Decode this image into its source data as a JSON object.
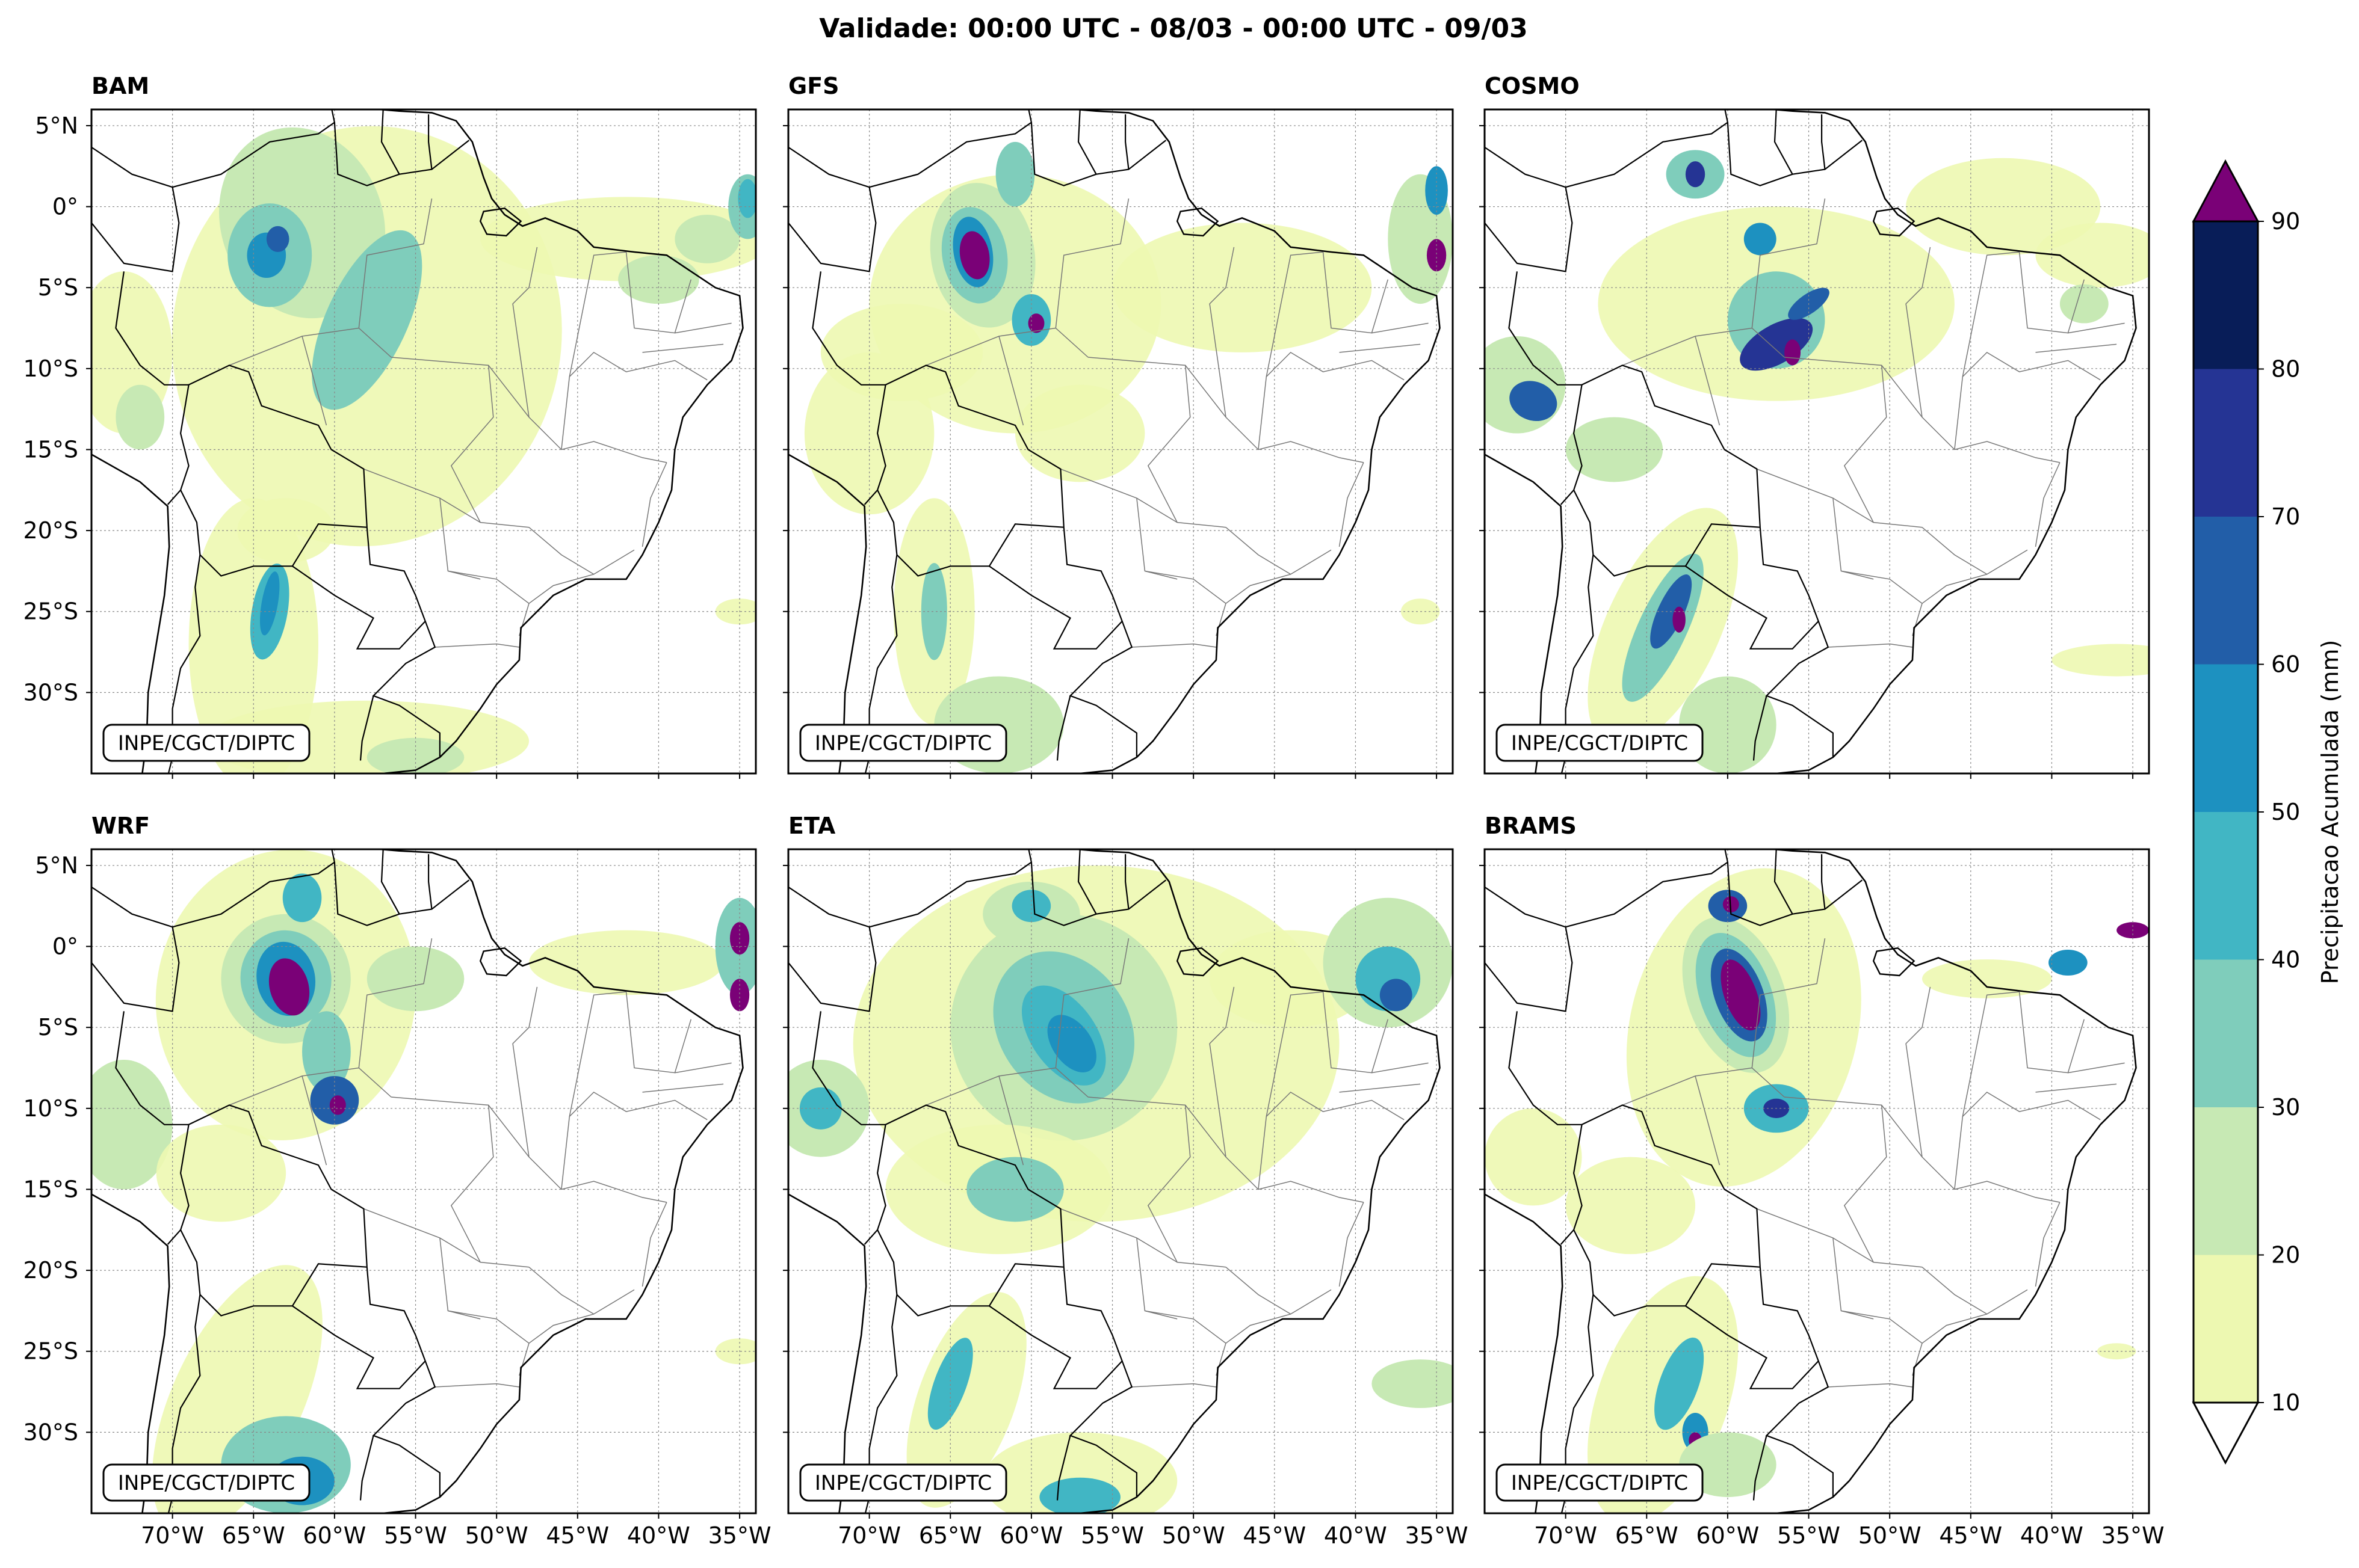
{
  "figure": {
    "title": "Validade: 00:00 UTC - 08/03 - 00:00 UTC - 09/03",
    "credit": "INPE/CGCT/DIPTC"
  },
  "panels": [
    {
      "id": "bam",
      "label": "BAM"
    },
    {
      "id": "gfs",
      "label": "GFS"
    },
    {
      "id": "cosmo",
      "label": "COSMO"
    },
    {
      "id": "wrf",
      "label": "WRF"
    },
    {
      "id": "eta",
      "label": "ETA"
    },
    {
      "id": "brams",
      "label": "BRAMS"
    }
  ],
  "axes": {
    "lat_ticks": [
      {
        "value": 5,
        "label": "5°N"
      },
      {
        "value": 0,
        "label": "0°"
      },
      {
        "value": -5,
        "label": "5°S"
      },
      {
        "value": -10,
        "label": "10°S"
      },
      {
        "value": -15,
        "label": "15°S"
      },
      {
        "value": -20,
        "label": "20°S"
      },
      {
        "value": -25,
        "label": "25°S"
      },
      {
        "value": -30,
        "label": "30°S"
      }
    ],
    "lon_ticks": [
      {
        "value": -70,
        "label": "70°W"
      },
      {
        "value": -65,
        "label": "65°W"
      },
      {
        "value": -60,
        "label": "60°W"
      },
      {
        "value": -55,
        "label": "55°W"
      },
      {
        "value": -50,
        "label": "50°W"
      },
      {
        "value": -45,
        "label": "45°W"
      },
      {
        "value": -40,
        "label": "40°W"
      },
      {
        "value": -35,
        "label": "35°W"
      }
    ],
    "lon_range": [
      -75,
      -34
    ],
    "lat_range": [
      -35,
      6
    ]
  },
  "colorbar": {
    "label": "Precipitacao Acumulada (mm)",
    "levels": [
      {
        "value": 10,
        "label": "10"
      },
      {
        "value": 20,
        "label": "20"
      },
      {
        "value": 30,
        "label": "30"
      },
      {
        "value": 40,
        "label": "40"
      },
      {
        "value": 50,
        "label": "50"
      },
      {
        "value": 60,
        "label": "60"
      },
      {
        "value": 70,
        "label": "70"
      },
      {
        "value": 80,
        "label": "80"
      },
      {
        "value": 90,
        "label": "90"
      }
    ],
    "colors": [
      "#edf8b1",
      "#c7e9b4",
      "#7fcdbb",
      "#41b6c4",
      "#1d91c0",
      "#225ea8",
      "#253494",
      "#081d58"
    ],
    "over_color": "#7a0177",
    "under_color": "#ffffff"
  }
}
